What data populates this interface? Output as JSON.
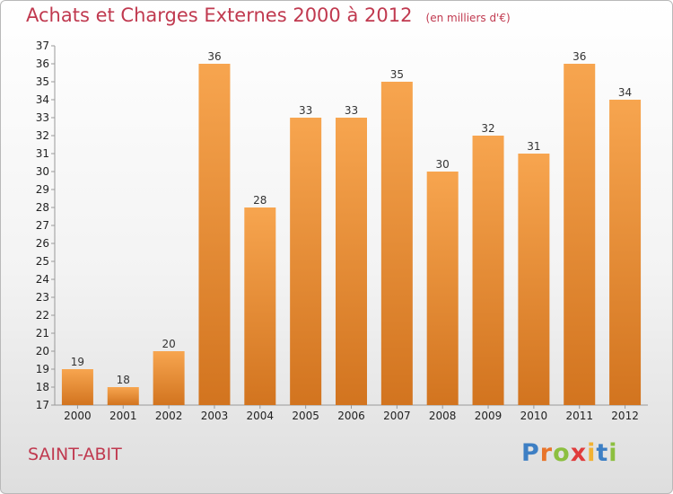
{
  "header": {
    "title": "Achats et Charges Externes 2000 à 2012",
    "unit": "(en milliers d'€)"
  },
  "commune": "SAINT-ABIT",
  "logo": {
    "text": [
      "P",
      "r",
      "o",
      "x",
      "i",
      "t",
      "i"
    ]
  },
  "chart_data": {
    "type": "bar",
    "title": "Achats et Charges Externes 2000 à 2012",
    "subtitle": "(en milliers d'€)",
    "categories": [
      "2000",
      "2001",
      "2002",
      "2003",
      "2004",
      "2005",
      "2006",
      "2007",
      "2008",
      "2009",
      "2010",
      "2011",
      "2012"
    ],
    "values": [
      19,
      18,
      20,
      36,
      28,
      33,
      33,
      35,
      30,
      32,
      31,
      36,
      34
    ],
    "ylim": [
      17,
      37
    ],
    "yticks": [
      17,
      18,
      19,
      20,
      21,
      22,
      23,
      24,
      25,
      26,
      27,
      28,
      29,
      30,
      31,
      32,
      33,
      34,
      35,
      36,
      37
    ],
    "grid": false,
    "colors": {
      "bar_top": "#f7a54f",
      "bar_bottom": "#d2741f"
    }
  }
}
